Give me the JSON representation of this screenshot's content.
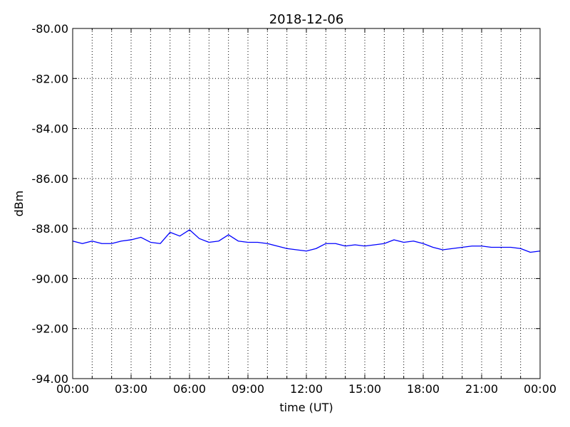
{
  "chart_data": {
    "type": "line",
    "title": "2018-12-06",
    "xlabel": "time (UT)",
    "ylabel": "dBm",
    "x": [
      0,
      0.5,
      1,
      1.5,
      2,
      2.5,
      3,
      3.5,
      4,
      4.5,
      5,
      5.5,
      6,
      6.5,
      7,
      7.5,
      8,
      8.5,
      9,
      9.5,
      10,
      10.5,
      11,
      11.5,
      12,
      12.5,
      13,
      13.5,
      14,
      14.5,
      15,
      15.5,
      16,
      16.5,
      17,
      17.5,
      18,
      18.5,
      19,
      19.5,
      20,
      20.5,
      21,
      21.5,
      22,
      22.5,
      23,
      23.5,
      24
    ],
    "series": [
      {
        "color": "#0000ff",
        "values": [
          -88.5,
          -88.6,
          -88.5,
          -88.6,
          -88.6,
          -88.5,
          -88.45,
          -88.35,
          -88.55,
          -88.6,
          -88.15,
          -88.3,
          -88.05,
          -88.4,
          -88.55,
          -88.5,
          -88.25,
          -88.5,
          -88.55,
          -88.55,
          -88.6,
          -88.7,
          -88.8,
          -88.85,
          -88.9,
          -88.8,
          -88.6,
          -88.6,
          -88.7,
          -88.65,
          -88.7,
          -88.65,
          -88.6,
          -88.45,
          -88.55,
          -88.5,
          -88.6,
          -88.75,
          -88.85,
          -88.8,
          -88.75,
          -88.7,
          -88.7,
          -88.75,
          -88.75,
          -88.75,
          -88.8,
          -88.95,
          -88.9
        ]
      }
    ],
    "xlim": [
      0,
      24
    ],
    "xticks": [
      {
        "value": 0,
        "label": "00:00"
      },
      {
        "value": 3,
        "label": "03:00"
      },
      {
        "value": 6,
        "label": "06:00"
      },
      {
        "value": 9,
        "label": "09:00"
      },
      {
        "value": 12,
        "label": "12:00"
      },
      {
        "value": 15,
        "label": "15:00"
      },
      {
        "value": 18,
        "label": "18:00"
      },
      {
        "value": 21,
        "label": "21:00"
      },
      {
        "value": 24,
        "label": "00:00"
      }
    ],
    "xminorticks": [
      1,
      2,
      4,
      5,
      7,
      8,
      10,
      11,
      13,
      14,
      16,
      17,
      19,
      20,
      22,
      23
    ],
    "ylim": [
      -94,
      -80
    ],
    "yticks": [
      {
        "value": -80,
        "label": "-80.00"
      },
      {
        "value": -82,
        "label": "-82.00"
      },
      {
        "value": -84,
        "label": "-84.00"
      },
      {
        "value": -86,
        "label": "-86.00"
      },
      {
        "value": -88,
        "label": "-88.00"
      },
      {
        "value": -90,
        "label": "-90.00"
      },
      {
        "value": -92,
        "label": "-92.00"
      },
      {
        "value": -94,
        "label": "-94.00"
      }
    ],
    "grid": true
  }
}
